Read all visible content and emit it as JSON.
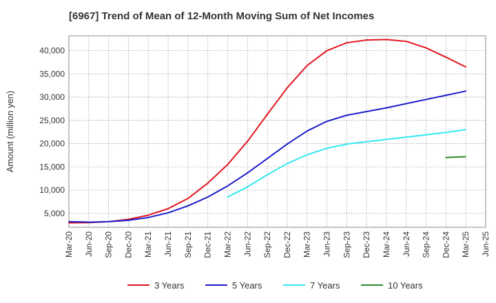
{
  "chart_data": {
    "type": "line",
    "title": "[6967]  Trend of Mean of 12-Month Moving Sum of Net Incomes",
    "xlabel": "",
    "ylabel": "Amount (million yen)",
    "x": [
      "Mar-20",
      "Jun-20",
      "Sep-20",
      "Dec-20",
      "Mar-21",
      "Jun-21",
      "Sep-21",
      "Dec-21",
      "Mar-22",
      "Jun-22",
      "Sep-22",
      "Dec-22",
      "Mar-23",
      "Jun-23",
      "Sep-23",
      "Dec-23",
      "Mar-24",
      "Jun-24",
      "Sep-24",
      "Dec-24",
      "Mar-25"
    ],
    "x_ticks": [
      "Mar-20",
      "Jun-20",
      "Sep-20",
      "Dec-20",
      "Mar-21",
      "Jun-21",
      "Sep-21",
      "Dec-21",
      "Mar-22",
      "Jun-22",
      "Sep-22",
      "Dec-22",
      "Mar-23",
      "Jun-23",
      "Sep-23",
      "Dec-23",
      "Mar-24",
      "Jun-24",
      "Sep-24",
      "Dec-24",
      "Mar-25",
      "Jun-25"
    ],
    "y_ticks": [
      5000,
      10000,
      15000,
      20000,
      25000,
      30000,
      35000,
      40000
    ],
    "y_tick_labels": [
      "5,000",
      "10,000",
      "15,000",
      "20,000",
      "25,000",
      "30,000",
      "35,000",
      "40,000"
    ],
    "ylim": [
      2000,
      43200
    ],
    "grid": true,
    "legend_position": "bottom",
    "series": [
      {
        "name": "3 Years",
        "color": "#e0141e",
        "values": [
          2950,
          3000,
          3200,
          3700,
          4600,
          6000,
          8200,
          11500,
          15500,
          20500,
          26300,
          32000,
          36800,
          40000,
          41700,
          42300,
          42400,
          42000,
          40600,
          38600,
          36500
        ]
      },
      {
        "name": "5 Years",
        "color": "#1a1acc",
        "values": [
          3200,
          3100,
          3200,
          3500,
          4100,
          5100,
          6600,
          8500,
          10900,
          13700,
          16800,
          19900,
          22700,
          24800,
          26100,
          26900,
          27700,
          28600,
          29500,
          30400,
          31300
        ]
      },
      {
        "name": "7 Years",
        "color": "#33e8f0",
        "values": [
          null,
          null,
          null,
          null,
          null,
          null,
          null,
          null,
          8500,
          10700,
          13300,
          15700,
          17600,
          19000,
          19900,
          20400,
          20900,
          21400,
          21900,
          22400,
          23000
        ]
      },
      {
        "name": "10 Years",
        "color": "#2a8a2a",
        "values": [
          null,
          null,
          null,
          null,
          null,
          null,
          null,
          null,
          null,
          null,
          null,
          null,
          null,
          null,
          null,
          null,
          null,
          null,
          null,
          17000,
          17200
        ]
      }
    ]
  }
}
